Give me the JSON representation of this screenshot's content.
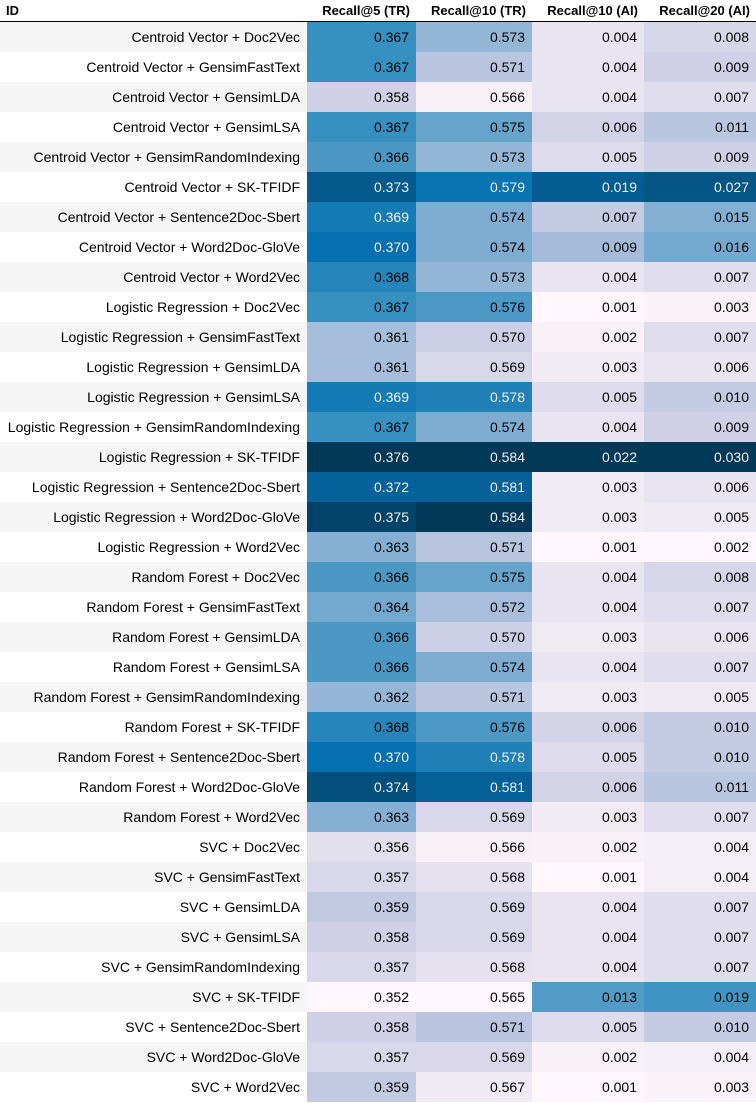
{
  "table": {
    "headers": [
      "ID",
      "Recall@5 (TR)",
      "Recall@10 (TR)",
      "Recall@10 (AI)",
      "Recall@20 (AI)"
    ],
    "rows": [
      [
        "Centroid Vector + Doc2Vec",
        "0.367",
        "0.573",
        "0.004",
        "0.008"
      ],
      [
        "Centroid Vector + GensimFastText",
        "0.367",
        "0.571",
        "0.004",
        "0.009"
      ],
      [
        "Centroid Vector + GensimLDA",
        "0.358",
        "0.566",
        "0.004",
        "0.007"
      ],
      [
        "Centroid Vector + GensimLSA",
        "0.367",
        "0.575",
        "0.006",
        "0.011"
      ],
      [
        "Centroid Vector + GensimRandomIndexing",
        "0.366",
        "0.573",
        "0.005",
        "0.009"
      ],
      [
        "Centroid Vector + SK-TFIDF",
        "0.373",
        "0.579",
        "0.019",
        "0.027"
      ],
      [
        "Centroid Vector + Sentence2Doc-Sbert",
        "0.369",
        "0.574",
        "0.007",
        "0.015"
      ],
      [
        "Centroid Vector + Word2Doc-GloVe",
        "0.370",
        "0.574",
        "0.009",
        "0.016"
      ],
      [
        "Centroid Vector + Word2Vec",
        "0.368",
        "0.573",
        "0.004",
        "0.007"
      ],
      [
        "Logistic Regression + Doc2Vec",
        "0.367",
        "0.576",
        "0.001",
        "0.003"
      ],
      [
        "Logistic Regression + GensimFastText",
        "0.361",
        "0.570",
        "0.002",
        "0.007"
      ],
      [
        "Logistic Regression + GensimLDA",
        "0.361",
        "0.569",
        "0.003",
        "0.006"
      ],
      [
        "Logistic Regression + GensimLSA",
        "0.369",
        "0.578",
        "0.005",
        "0.010"
      ],
      [
        "Logistic Regression + GensimRandomIndexing",
        "0.367",
        "0.574",
        "0.004",
        "0.009"
      ],
      [
        "Logistic Regression + SK-TFIDF",
        "0.376",
        "0.584",
        "0.022",
        "0.030"
      ],
      [
        "Logistic Regression + Sentence2Doc-Sbert",
        "0.372",
        "0.581",
        "0.003",
        "0.006"
      ],
      [
        "Logistic Regression + Word2Doc-GloVe",
        "0.375",
        "0.584",
        "0.003",
        "0.005"
      ],
      [
        "Logistic Regression + Word2Vec",
        "0.363",
        "0.571",
        "0.001",
        "0.002"
      ],
      [
        "Random Forest + Doc2Vec",
        "0.366",
        "0.575",
        "0.004",
        "0.008"
      ],
      [
        "Random Forest + GensimFastText",
        "0.364",
        "0.572",
        "0.004",
        "0.007"
      ],
      [
        "Random Forest + GensimLDA",
        "0.366",
        "0.570",
        "0.003",
        "0.006"
      ],
      [
        "Random Forest + GensimLSA",
        "0.366",
        "0.574",
        "0.004",
        "0.007"
      ],
      [
        "Random Forest + GensimRandomIndexing",
        "0.362",
        "0.571",
        "0.003",
        "0.005"
      ],
      [
        "Random Forest + SK-TFIDF",
        "0.368",
        "0.576",
        "0.006",
        "0.010"
      ],
      [
        "Random Forest + Sentence2Doc-Sbert",
        "0.370",
        "0.578",
        "0.005",
        "0.010"
      ],
      [
        "Random Forest + Word2Doc-GloVe",
        "0.374",
        "0.581",
        "0.006",
        "0.011"
      ],
      [
        "Random Forest + Word2Vec",
        "0.363",
        "0.569",
        "0.003",
        "0.007"
      ],
      [
        "SVC + Doc2Vec",
        "0.356",
        "0.566",
        "0.002",
        "0.004"
      ],
      [
        "SVC + GensimFastText",
        "0.357",
        "0.568",
        "0.001",
        "0.004"
      ],
      [
        "SVC + GensimLDA",
        "0.359",
        "0.569",
        "0.004",
        "0.007"
      ],
      [
        "SVC + GensimLSA",
        "0.358",
        "0.569",
        "0.004",
        "0.007"
      ],
      [
        "SVC + GensimRandomIndexing",
        "0.357",
        "0.568",
        "0.004",
        "0.007"
      ],
      [
        "SVC + SK-TFIDF",
        "0.352",
        "0.565",
        "0.013",
        "0.019"
      ],
      [
        "SVC + Sentence2Doc-Sbert",
        "0.358",
        "0.571",
        "0.005",
        "0.010"
      ],
      [
        "SVC + Word2Doc-GloVe",
        "0.357",
        "0.569",
        "0.002",
        "0.004"
      ],
      [
        "SVC + Word2Vec",
        "0.359",
        "0.567",
        "0.001",
        "0.003"
      ]
    ]
  },
  "colors": {
    "scale_low": "#fff7fb",
    "scale_high": "#023858",
    "id_stripe": "#f5f5f5"
  }
}
